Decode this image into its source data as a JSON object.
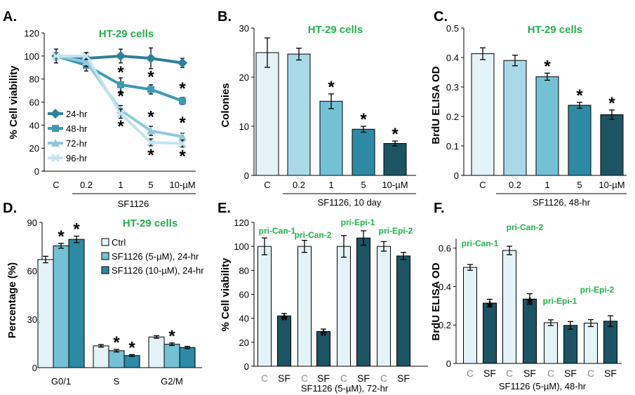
{
  "colors": {
    "accent_green": "#21b04b",
    "c_lightest": "#e3f3f8",
    "c_light": "#a9d9e8",
    "c_mid": "#74c1d6",
    "c_dark": "#2e8aa4",
    "c_darkest": "#1d5464",
    "line_24": "#2f7f9a",
    "line_48": "#3e9ab5",
    "line_72": "#8fc9db",
    "line_96": "#c3e3ee"
  },
  "chart_data": [
    {
      "panel_label": "A.",
      "type": "line",
      "title": "HT-29 cells",
      "ylabel": "% Cell viability",
      "xlabel": "SF1126",
      "categories": [
        "C",
        "0.2",
        "1",
        "5",
        "10-µM"
      ],
      "ylim": [
        0,
        120
      ],
      "yticks": [
        "0",
        "20",
        "40",
        "60",
        "80",
        "100",
        "120"
      ],
      "legend_position": "left",
      "series": [
        {
          "name": "24-hr",
          "values": [
            100,
            98,
            100,
            98,
            94
          ],
          "errors": [
            6,
            5,
            6,
            9,
            4
          ],
          "sig": [
            false,
            false,
            false,
            false,
            false
          ]
        },
        {
          "name": "48-hr",
          "values": [
            100,
            92,
            75,
            71,
            61
          ],
          "errors": [
            3,
            5,
            6,
            4,
            3
          ],
          "sig": [
            false,
            false,
            true,
            true,
            true
          ]
        },
        {
          "name": "72-hr",
          "values": [
            100,
            95,
            53,
            35,
            30
          ],
          "errors": [
            2,
            4,
            4,
            4,
            3
          ],
          "sig": [
            false,
            false,
            true,
            true,
            true
          ]
        },
        {
          "name": "96-hr",
          "values": [
            100,
            100,
            50,
            25,
            24
          ],
          "errors": [
            2,
            3,
            4,
            3,
            3
          ],
          "sig": [
            false,
            false,
            true,
            true,
            true
          ]
        }
      ]
    },
    {
      "panel_label": "B.",
      "type": "bar",
      "title": "HT-29 cells",
      "ylabel": "Colonies",
      "xlabel": "SF1126, 10 day",
      "categories": [
        "C",
        "0.2",
        "1",
        "5",
        "10-µM"
      ],
      "values": [
        25,
        24.7,
        15.1,
        9.4,
        6.5
      ],
      "errors": [
        3,
        1.2,
        1.5,
        0.6,
        0.5
      ],
      "sig": [
        false,
        false,
        true,
        true,
        true
      ],
      "ylim": [
        0,
        30
      ],
      "yticks": [
        "0",
        "10",
        "20",
        "30"
      ]
    },
    {
      "panel_label": "C.",
      "type": "bar",
      "title": "HT-29 cells",
      "ylabel": "BrdU ELISA OD",
      "xlabel": "SF1126, 48-hr",
      "categories": [
        "C",
        "0.2",
        "1",
        "5",
        "10-µM"
      ],
      "values": [
        0.413,
        0.39,
        0.335,
        0.238,
        0.206
      ],
      "errors": [
        0.02,
        0.018,
        0.012,
        0.01,
        0.016
      ],
      "sig": [
        false,
        false,
        true,
        true,
        true
      ],
      "ylim": [
        0,
        0.5
      ],
      "yticks": [
        "0",
        "0.1",
        "0.2",
        "0.3",
        "0.4",
        "0.5"
      ]
    },
    {
      "panel_label": "D.",
      "type": "bar",
      "title": "HT-29 cells",
      "ylabel": "Percentage (%)",
      "categories": [
        "G0/1",
        "S",
        "G2/M"
      ],
      "ylim": [
        0,
        90
      ],
      "yticks": [
        "0",
        "30",
        "60",
        "90"
      ],
      "legend_position": "top-right",
      "series": [
        {
          "name": "Ctrl",
          "values": [
            67,
            13.5,
            19
          ],
          "errors": [
            2,
            0.8,
            0.8
          ],
          "sig": [
            false,
            false,
            false
          ]
        },
        {
          "name": "SF1126 (5-µM), 24-hr",
          "values": [
            75.5,
            10.5,
            14.5
          ],
          "errors": [
            1.5,
            0.8,
            0.8
          ],
          "sig": [
            true,
            true,
            true
          ]
        },
        {
          "name": "SF1126 (10-µM), 24-hr",
          "values": [
            79.5,
            7.5,
            12.5
          ],
          "errors": [
            2,
            0.6,
            0.7
          ],
          "sig": [
            true,
            true,
            false
          ]
        }
      ]
    },
    {
      "panel_label": "E.",
      "type": "bar",
      "ylabel": "% Cell viability",
      "xlabel": "SF1126 (5-µM), 72-hr",
      "categories": [
        "C",
        "SF",
        "C",
        "SF",
        "C",
        "SF",
        "C",
        "SF"
      ],
      "values": [
        100,
        42,
        100,
        29,
        100,
        107,
        100,
        92
      ],
      "errors": [
        7,
        2,
        5,
        2,
        9,
        6,
        4,
        3
      ],
      "sig": [
        false,
        true,
        false,
        true,
        false,
        false,
        false,
        false
      ],
      "group_labels": [
        "pri-Can-1",
        "pri-Can-2",
        "pri-Epi-1",
        "pri-Epi-2"
      ],
      "ylim": [
        0,
        120
      ],
      "yticks": [
        "0",
        "20",
        "40",
        "60",
        "80",
        "100",
        "120"
      ]
    },
    {
      "panel_label": "F.",
      "type": "bar",
      "ylabel": "BrdU ELISA OD",
      "xlabel": "SF1126 (5-µM), 48-hr",
      "categories": [
        "C",
        "SF",
        "C",
        "SF",
        "C",
        "SF",
        "C",
        "SF"
      ],
      "values": [
        0.5,
        0.314,
        0.588,
        0.335,
        0.212,
        0.198,
        0.21,
        0.22
      ],
      "errors": [
        0.015,
        0.02,
        0.022,
        0.028,
        0.015,
        0.02,
        0.018,
        0.028
      ],
      "sig": [
        false,
        true,
        false,
        true,
        false,
        false,
        false,
        false
      ],
      "group_labels": [
        "pri-Can-1",
        "pri-Can-2",
        "pri-Epi-1",
        "pri-Epi-2"
      ],
      "ylim": [
        0,
        0.65
      ],
      "yticks": [
        "0",
        "0.2",
        "0.4",
        "0.6"
      ]
    }
  ]
}
